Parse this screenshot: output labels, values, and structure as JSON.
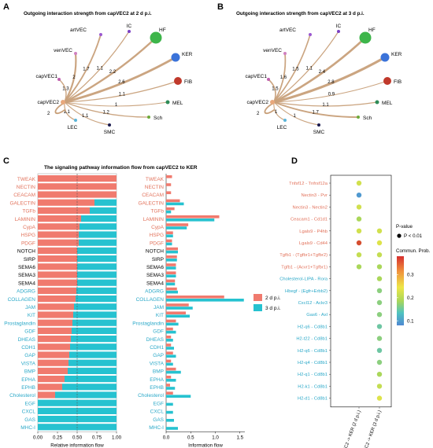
{
  "panels": {
    "A": {
      "letter": "A",
      "title": "Outgoing interaction strength from capVEC2 at 2 d p.i."
    },
    "B": {
      "letter": "B",
      "title": "Outgoing interaction strength from capVEC2 at 3  d p.i."
    },
    "C": {
      "letter": "C",
      "title": "The signaling pathway information flow from capVEC2 to KER"
    },
    "D": {
      "letter": "D"
    }
  },
  "colors": {
    "day2": "#F07A6E",
    "day3": "#26C2D0",
    "label_day2": "#E2725B",
    "label_day3": "#2AA8C8",
    "edge": "#C8A07A"
  },
  "chart_data": [
    {
      "type": "network",
      "panel": "A",
      "source": "capVEC2",
      "nodes": [
        {
          "name": "artVEC",
          "color": "#9B59D0"
        },
        {
          "name": "IC",
          "color": "#7B3FC4"
        },
        {
          "name": "HF",
          "color": "#3DB54A"
        },
        {
          "name": "KER",
          "color": "#3B73D9"
        },
        {
          "name": "FIB",
          "color": "#C0392B"
        },
        {
          "name": "MEL",
          "color": "#2E8B57"
        },
        {
          "name": "Sch",
          "color": "#6DAA3A"
        },
        {
          "name": "SMC",
          "color": "#1A1A4E"
        },
        {
          "name": "LEC",
          "color": "#5BB5D9"
        },
        {
          "name": "capVEC1",
          "color": "#C060B0"
        },
        {
          "name": "venVEC",
          "color": "#D080C0"
        },
        {
          "name": "capVEC2",
          "color": "#E8A87C"
        }
      ],
      "edges": [
        {
          "to": "artVEC",
          "weight": "1.7"
        },
        {
          "to": "IC",
          "weight": "1.1"
        },
        {
          "to": "HF",
          "weight": "2.2"
        },
        {
          "to": "KER",
          "weight": "2.6"
        },
        {
          "to": "FIB",
          "weight": "1.1"
        },
        {
          "to": "MEL",
          "weight": "1"
        },
        {
          "to": "Sch",
          "weight": "1.2"
        },
        {
          "to": "SMC",
          "weight": "1.1"
        },
        {
          "to": "LEC",
          "weight": "1.1"
        },
        {
          "to": "capVEC1",
          "weight": "1.3"
        },
        {
          "to": "venVEC",
          "weight": "2"
        },
        {
          "to": "capVEC2",
          "weight": "2"
        }
      ]
    },
    {
      "type": "network",
      "panel": "B",
      "source": "capVEC2",
      "nodes": [
        {
          "name": "artVEC",
          "color": "#9B59D0"
        },
        {
          "name": "IC",
          "color": "#7B3FC4"
        },
        {
          "name": "HF",
          "color": "#3DB54A"
        },
        {
          "name": "KER",
          "color": "#3B73D9"
        },
        {
          "name": "FIB",
          "color": "#C0392B"
        },
        {
          "name": "MEL",
          "color": "#2E8B57"
        },
        {
          "name": "Sch",
          "color": "#6DAA3A"
        },
        {
          "name": "SMC",
          "color": "#1A1A4E"
        },
        {
          "name": "LEC",
          "color": "#5BB5D9"
        },
        {
          "name": "capVEC1",
          "color": "#C060B0"
        },
        {
          "name": "venVEC",
          "color": "#D080C0"
        },
        {
          "name": "capVEC2",
          "color": "#E8A87C"
        }
      ],
      "edges": [
        {
          "to": "artVEC",
          "weight": "1.5"
        },
        {
          "to": "IC",
          "weight": "1.1"
        },
        {
          "to": "HF",
          "weight": "2.4"
        },
        {
          "to": "KER",
          "weight": "2.8"
        },
        {
          "to": "FIB",
          "weight": "0.9"
        },
        {
          "to": "MEL",
          "weight": "1.1"
        },
        {
          "to": "Sch",
          "weight": "1.7"
        },
        {
          "to": "SMC",
          "weight": "1"
        },
        {
          "to": "LEC",
          "weight": "1"
        },
        {
          "to": "capVEC1",
          "weight": "1.5"
        },
        {
          "to": "venVEC",
          "weight": "1.6"
        },
        {
          "to": "capVEC2",
          "weight": "2"
        }
      ]
    },
    {
      "type": "bar",
      "panel": "C-left",
      "orientation": "horizontal-stacked",
      "xlabel": "Relative information flow",
      "xlim": [
        0,
        1
      ],
      "xticks": [
        "0.00",
        "0.25",
        "0.50",
        "0.75",
        "1.00"
      ],
      "categories": [
        "TWEAK",
        "NECTIN",
        "CEACAM",
        "GALECTIN",
        "TGFb",
        "LAMININ",
        "CypA",
        "HSPG",
        "PDGF",
        "NOTCH",
        "SIRP",
        "SEMA6",
        "SEMA3",
        "SEMA4",
        "ADGRG",
        "COLLAGEN",
        "JAM",
        "KIT",
        "Prostaglandin",
        "GDF",
        "DHEAS",
        "CDH1",
        "GAP",
        "VISTA",
        "BMP",
        "EPHA",
        "EPHB",
        "Cholesterol",
        "EGF",
        "CXCL",
        "GAS",
        "MHC-I"
      ],
      "label_groups": [
        "day2",
        "day2",
        "day2",
        "day2",
        "day2",
        "day2",
        "day2",
        "day2",
        "day2",
        "none",
        "none",
        "none",
        "none",
        "none",
        "day3",
        "day3",
        "day3",
        "day3",
        "day3",
        "day3",
        "day3",
        "day3",
        "day3",
        "day3",
        "day3",
        "day3",
        "day3",
        "day3",
        "day3",
        "day3",
        "day3",
        "day3"
      ],
      "values_day2": [
        1.0,
        1.0,
        1.0,
        0.72,
        0.66,
        0.55,
        0.53,
        0.52,
        0.52,
        0.5,
        0.5,
        0.5,
        0.5,
        0.5,
        0.49,
        0.48,
        0.46,
        0.45,
        0.44,
        0.43,
        0.42,
        0.41,
        0.4,
        0.39,
        0.38,
        0.34,
        0.31,
        0.22,
        0.0,
        0.0,
        0.0,
        0.0
      ],
      "reference_line": 0.5
    },
    {
      "type": "bar",
      "panel": "C-right",
      "orientation": "horizontal-grouped",
      "xlabel": "Information flow",
      "xlim": [
        0,
        1.6
      ],
      "xticks": [
        "0.0",
        "0.5",
        "1.0",
        "1.5"
      ],
      "legend": [
        "2 d p.i.",
        "3 d p.i."
      ],
      "legend_position": "right",
      "categories": [
        "TWEAK",
        "NECTIN",
        "CEACAM",
        "GALECTIN",
        "TGFb",
        "LAMININ",
        "CypA",
        "HSPG",
        "PDGF",
        "NOTCH",
        "SIRP",
        "SEMA6",
        "SEMA3",
        "SEMA4",
        "ADGRG",
        "COLLAGEN",
        "JAM",
        "KIT",
        "Prostaglandin",
        "GDF",
        "DHEAS",
        "CDH1",
        "GAP",
        "VISTA",
        "BMP",
        "EPHA",
        "EPHB",
        "Cholesterol",
        "EGF",
        "CXCL",
        "GAS",
        "MHC-I"
      ],
      "series": [
        {
          "name": "2 d p.i.",
          "values": [
            0.12,
            0.1,
            0.1,
            0.28,
            0.17,
            1.08,
            0.45,
            0.14,
            0.12,
            0.24,
            0.22,
            0.2,
            0.2,
            0.18,
            0.22,
            1.18,
            0.46,
            0.4,
            0.2,
            0.14,
            0.1,
            0.1,
            0.14,
            0.1,
            0.2,
            0.1,
            0.08,
            0.14,
            0.0,
            0.0,
            0.0,
            0.0
          ]
        },
        {
          "name": "3 d p.i.",
          "values": [
            0.0,
            0.0,
            0.0,
            0.36,
            0.1,
            0.98,
            0.42,
            0.14,
            0.12,
            0.24,
            0.22,
            0.2,
            0.2,
            0.18,
            0.24,
            1.58,
            0.54,
            0.48,
            0.25,
            0.2,
            0.14,
            0.16,
            0.2,
            0.14,
            0.3,
            0.2,
            0.18,
            0.5,
            0.14,
            0.14,
            0.16,
            0.24
          ]
        }
      ]
    },
    {
      "type": "scatter",
      "panel": "D",
      "style": "dot-plot",
      "x_categories": [
        "(capVEC2 -> KER (2 d p.i.)",
        "(capVEC2 -> KER (3 d p.i.)"
      ],
      "y_categories": [
        "Tnfsf12 - Tnfrsf12a",
        "Nectin3 - Pvr",
        "Nectin3 - Nectin2",
        "Ceacam1 - Cd1d1",
        "Lgals9 - P4hb",
        "Lgals9 - Cd44",
        "Tgfb1 - (Tgfbr1+Tgfbr2)",
        "Tgfb1 - (Acvr1+Tgfbr1)",
        "Cholesterol-LIPA - Rora",
        "Hbegf - (Egfr+Erbb2)",
        "Cxcl12 - Ackr3",
        "Gas6 - Axl",
        "H2-q6 - Cd8b1",
        "H2-t22 - Cd8b1",
        "H2-q6 - Cd8b1",
        "H2-q4 - Cd8b1",
        "H2-q1 - Cd8b1",
        "H2-k1 - Cd8b1",
        "H2-d1 - Cd8b1"
      ],
      "y_label_groups": [
        "day2",
        "day2",
        "day2",
        "day2",
        "day2",
        "day2",
        "day2",
        "day2",
        "day3",
        "day3",
        "day3",
        "day3",
        "day3",
        "day3",
        "day3",
        "day3",
        "day3",
        "day3",
        "day3"
      ],
      "points": [
        {
          "x": 0,
          "y": 0,
          "prob": 0.25
        },
        {
          "x": 0,
          "y": 1,
          "prob": 0.1
        },
        {
          "x": 0,
          "y": 2,
          "prob": 0.25
        },
        {
          "x": 0,
          "y": 3,
          "prob": 0.22
        },
        {
          "x": 0,
          "y": 4,
          "prob": 0.25
        },
        {
          "x": 1,
          "y": 4,
          "prob": 0.25
        },
        {
          "x": 0,
          "y": 5,
          "prob": 0.36
        },
        {
          "x": 1,
          "y": 5,
          "prob": 0.26
        },
        {
          "x": 0,
          "y": 6,
          "prob": 0.24
        },
        {
          "x": 1,
          "y": 6,
          "prob": 0.24
        },
        {
          "x": 0,
          "y": 7,
          "prob": 0.22
        },
        {
          "x": 1,
          "y": 7,
          "prob": 0.22
        },
        {
          "x": 1,
          "y": 8,
          "prob": 0.22
        },
        {
          "x": 1,
          "y": 9,
          "prob": 0.2
        },
        {
          "x": 1,
          "y": 10,
          "prob": 0.2
        },
        {
          "x": 1,
          "y": 11,
          "prob": 0.2
        },
        {
          "x": 1,
          "y": 12,
          "prob": 0.18
        },
        {
          "x": 1,
          "y": 13,
          "prob": 0.2
        },
        {
          "x": 1,
          "y": 14,
          "prob": 0.18
        },
        {
          "x": 1,
          "y": 15,
          "prob": 0.2
        },
        {
          "x": 1,
          "y": 16,
          "prob": 0.22
        },
        {
          "x": 1,
          "y": 17,
          "prob": 0.24
        },
        {
          "x": 1,
          "y": 18,
          "prob": 0.26
        }
      ],
      "legend_pvalue_title": "P-value",
      "legend_pvalue_label": "P < 0.01",
      "colorbar_title": "Commun. Prob.",
      "colorbar_ticks": [
        "0.3",
        "0.2",
        "0.1"
      ],
      "colorbar_range": [
        0.08,
        0.38
      ]
    }
  ]
}
